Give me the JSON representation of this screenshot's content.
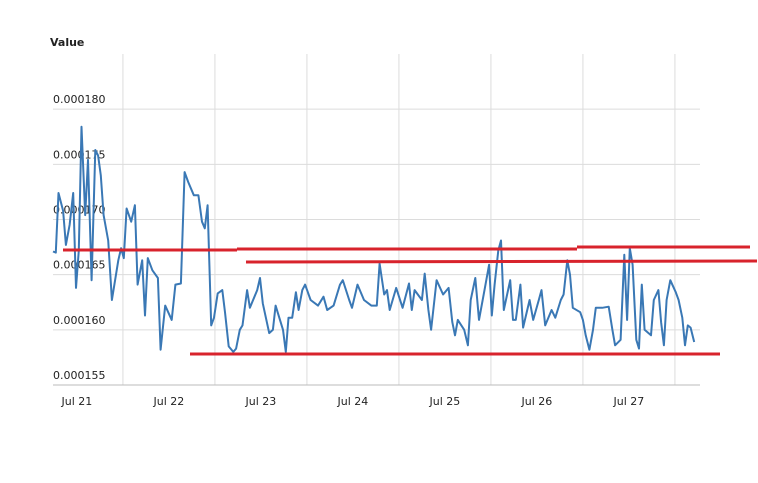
{
  "chart_data": {
    "type": "line",
    "y_label": "Value",
    "xlim": [
      -0.76,
      6.24
    ],
    "xticks": [
      {
        "value": 0,
        "label": "Jul 21"
      },
      {
        "value": 1,
        "label": "Jul 22"
      },
      {
        "value": 2,
        "label": "Jul 23"
      },
      {
        "value": 3,
        "label": "Jul 24"
      },
      {
        "value": 4,
        "label": "Jul 25"
      },
      {
        "value": 5,
        "label": "Jul 26"
      },
      {
        "value": 6,
        "label": "Jul 27"
      }
    ],
    "ylim": [
      0.000155,
      0.000185
    ],
    "yticks": [
      0.000155,
      {
        "value": 0.00016,
        "label": "0.000160"
      },
      0.000165,
      {
        "value": 0.00017,
        "label": "0.000170"
      },
      0.000175,
      {
        "value": 0.00018,
        "label": "0.000180"
      }
    ],
    "grid": true,
    "x": [
      -0.76,
      -0.73,
      -0.7,
      -0.65,
      -0.62,
      -0.58,
      -0.54,
      -0.51,
      -0.48,
      -0.45,
      -0.41,
      -0.38,
      -0.34,
      -0.3,
      -0.27,
      -0.24,
      -0.21,
      -0.16,
      -0.12,
      -0.05,
      -0.02,
      0.01,
      0.04,
      0.09,
      0.13,
      0.16,
      0.21,
      0.24,
      0.27,
      0.32,
      0.38,
      0.41,
      0.46,
      0.53,
      0.57,
      0.63,
      0.67,
      0.71,
      0.77,
      0.82,
      0.86,
      0.89,
      0.92,
      0.96,
      0.99,
      1.03,
      1.08,
      1.11,
      1.15,
      1.2,
      1.23,
      1.27,
      1.3,
      1.35,
      1.38,
      1.46,
      1.49,
      1.52,
      1.59,
      1.63,
      1.66,
      1.74,
      1.77,
      1.8,
      1.84,
      1.88,
      1.91,
      1.95,
      1.98,
      2.04,
      2.12,
      2.18,
      2.22,
      2.29,
      2.36,
      2.39,
      2.46,
      2.49,
      2.55,
      2.62,
      2.7,
      2.76,
      2.79,
      2.84,
      2.87,
      2.9,
      2.97,
      3.04,
      3.11,
      3.14,
      3.17,
      3.25,
      3.28,
      3.32,
      3.35,
      3.41,
      3.48,
      3.54,
      3.58,
      3.61,
      3.64,
      3.71,
      3.75,
      3.78,
      3.83,
      3.87,
      3.93,
      3.98,
      4.01,
      4.04,
      4.08,
      4.11,
      4.14,
      4.21,
      4.24,
      4.27,
      4.32,
      4.35,
      4.42,
      4.46,
      4.52,
      4.55,
      4.59,
      4.66,
      4.7,
      4.76,
      4.79,
      4.83,
      4.86,
      4.89,
      4.97,
      5.0,
      5.03,
      5.07,
      5.11,
      5.14,
      5.21,
      5.28,
      5.32,
      5.35,
      5.41,
      5.45,
      5.48,
      5.51,
      5.54,
      5.58,
      5.61,
      5.64,
      5.67,
      5.74,
      5.77,
      5.82,
      5.85,
      5.88,
      5.91,
      5.95,
      6.01,
      6.04,
      6.08,
      6.11,
      6.14,
      6.17,
      6.21
    ],
    "series": [
      {
        "color": "#3a78b5",
        "values": [
          0.0001671,
          0.000167,
          0.0001724,
          0.0001708,
          0.0001677,
          0.0001695,
          0.0001724,
          0.0001638,
          0.0001672,
          0.0001784,
          0.0001704,
          0.0001754,
          0.0001645,
          0.0001763,
          0.0001758,
          0.000174,
          0.0001704,
          0.0001681,
          0.0001627,
          0.0001663,
          0.0001674,
          0.0001665,
          0.000171,
          0.0001698,
          0.0001713,
          0.0001641,
          0.0001663,
          0.0001613,
          0.0001665,
          0.0001654,
          0.0001647,
          0.0001582,
          0.0001622,
          0.0001609,
          0.0001641,
          0.0001642,
          0.0001743,
          0.0001734,
          0.0001722,
          0.0001722,
          0.0001698,
          0.0001692,
          0.0001713,
          0.0001604,
          0.0001611,
          0.0001633,
          0.0001636,
          0.0001616,
          0.0001585,
          0.000158,
          0.0001583,
          0.00016,
          0.0001604,
          0.0001636,
          0.000162,
          0.0001636,
          0.0001647,
          0.0001624,
          0.0001597,
          0.00016,
          0.0001622,
          0.00016,
          0.000158,
          0.0001611,
          0.0001611,
          0.0001634,
          0.0001618,
          0.0001636,
          0.0001641,
          0.0001627,
          0.0001622,
          0.000163,
          0.0001618,
          0.0001622,
          0.0001641,
          0.0001645,
          0.0001627,
          0.000162,
          0.0001641,
          0.0001627,
          0.0001622,
          0.0001622,
          0.000166,
          0.0001632,
          0.0001636,
          0.0001618,
          0.0001638,
          0.000162,
          0.0001642,
          0.0001618,
          0.0001636,
          0.0001627,
          0.0001651,
          0.0001618,
          0.00016,
          0.0001645,
          0.0001632,
          0.0001638,
          0.0001607,
          0.0001595,
          0.0001609,
          0.00016,
          0.0001586,
          0.0001627,
          0.0001647,
          0.0001609,
          0.0001636,
          0.0001659,
          0.0001613,
          0.0001641,
          0.0001672,
          0.0001681,
          0.0001618,
          0.0001645,
          0.0001609,
          0.0001609,
          0.0001641,
          0.0001602,
          0.0001627,
          0.0001609,
          0.0001627,
          0.0001636,
          0.0001604,
          0.0001618,
          0.0001611,
          0.0001627,
          0.0001632,
          0.0001663,
          0.000165,
          0.000162,
          0.0001616,
          0.0001609,
          0.0001595,
          0.0001582,
          0.00016,
          0.000162,
          0.000162,
          0.0001621,
          0.00016,
          0.0001586,
          0.0001591,
          0.0001668,
          0.0001609,
          0.0001674,
          0.0001659,
          0.0001591,
          0.0001583,
          0.0001641,
          0.00016,
          0.0001595,
          0.0001627,
          0.0001636,
          0.0001607,
          0.0001586,
          0.0001627,
          0.0001645,
          0.0001634,
          0.0001627,
          0.0001611,
          0.0001586,
          0.0001604,
          0.0001602,
          0.0001589
        ]
      }
    ]
  }
}
